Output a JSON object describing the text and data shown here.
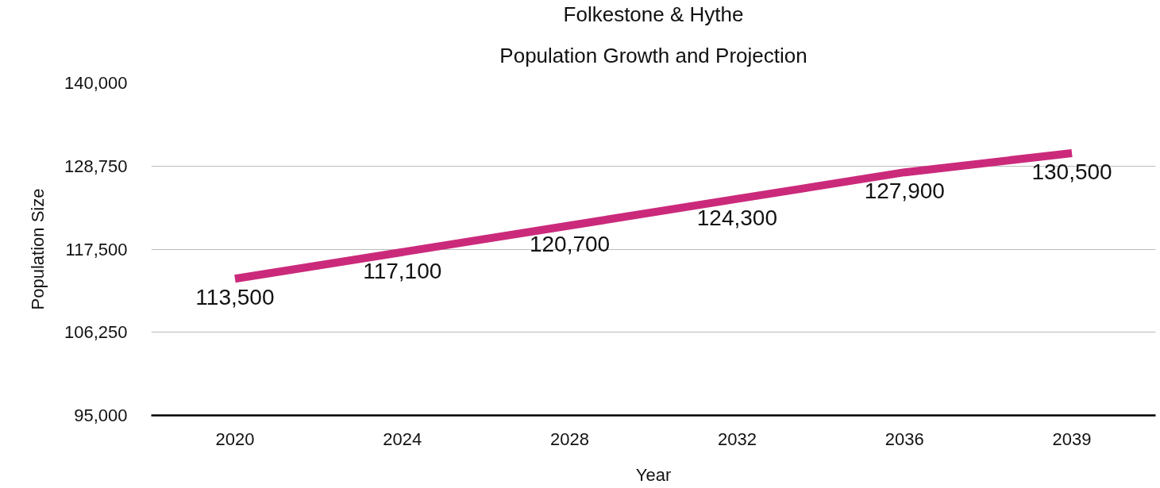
{
  "chart_data": {
    "type": "line",
    "title": "Folkestone & Hythe",
    "subtitle": "Population Growth and Projection",
    "xlabel": "Year",
    "ylabel": "Population Size",
    "categories": [
      "2020",
      "2024",
      "2028",
      "2032",
      "2036",
      "2039"
    ],
    "series": [
      {
        "color": "#cb2a7b",
        "values": [
          113500,
          117100,
          120700,
          124300,
          127900,
          130500
        ],
        "value_labels": [
          "113,500",
          "117,100",
          "120,700",
          "124,300",
          "127,900",
          "130,500"
        ]
      }
    ],
    "ylim": [
      95000,
      140000
    ],
    "yticks": [
      {
        "value": 95000,
        "label": "95,000"
      },
      {
        "value": 106250,
        "label": "106,250"
      },
      {
        "value": 117500,
        "label": "117,500"
      },
      {
        "value": 128750,
        "label": "128,750"
      },
      {
        "value": 140000,
        "label": "140,000"
      }
    ],
    "grid": "y",
    "line_style": "solid"
  }
}
